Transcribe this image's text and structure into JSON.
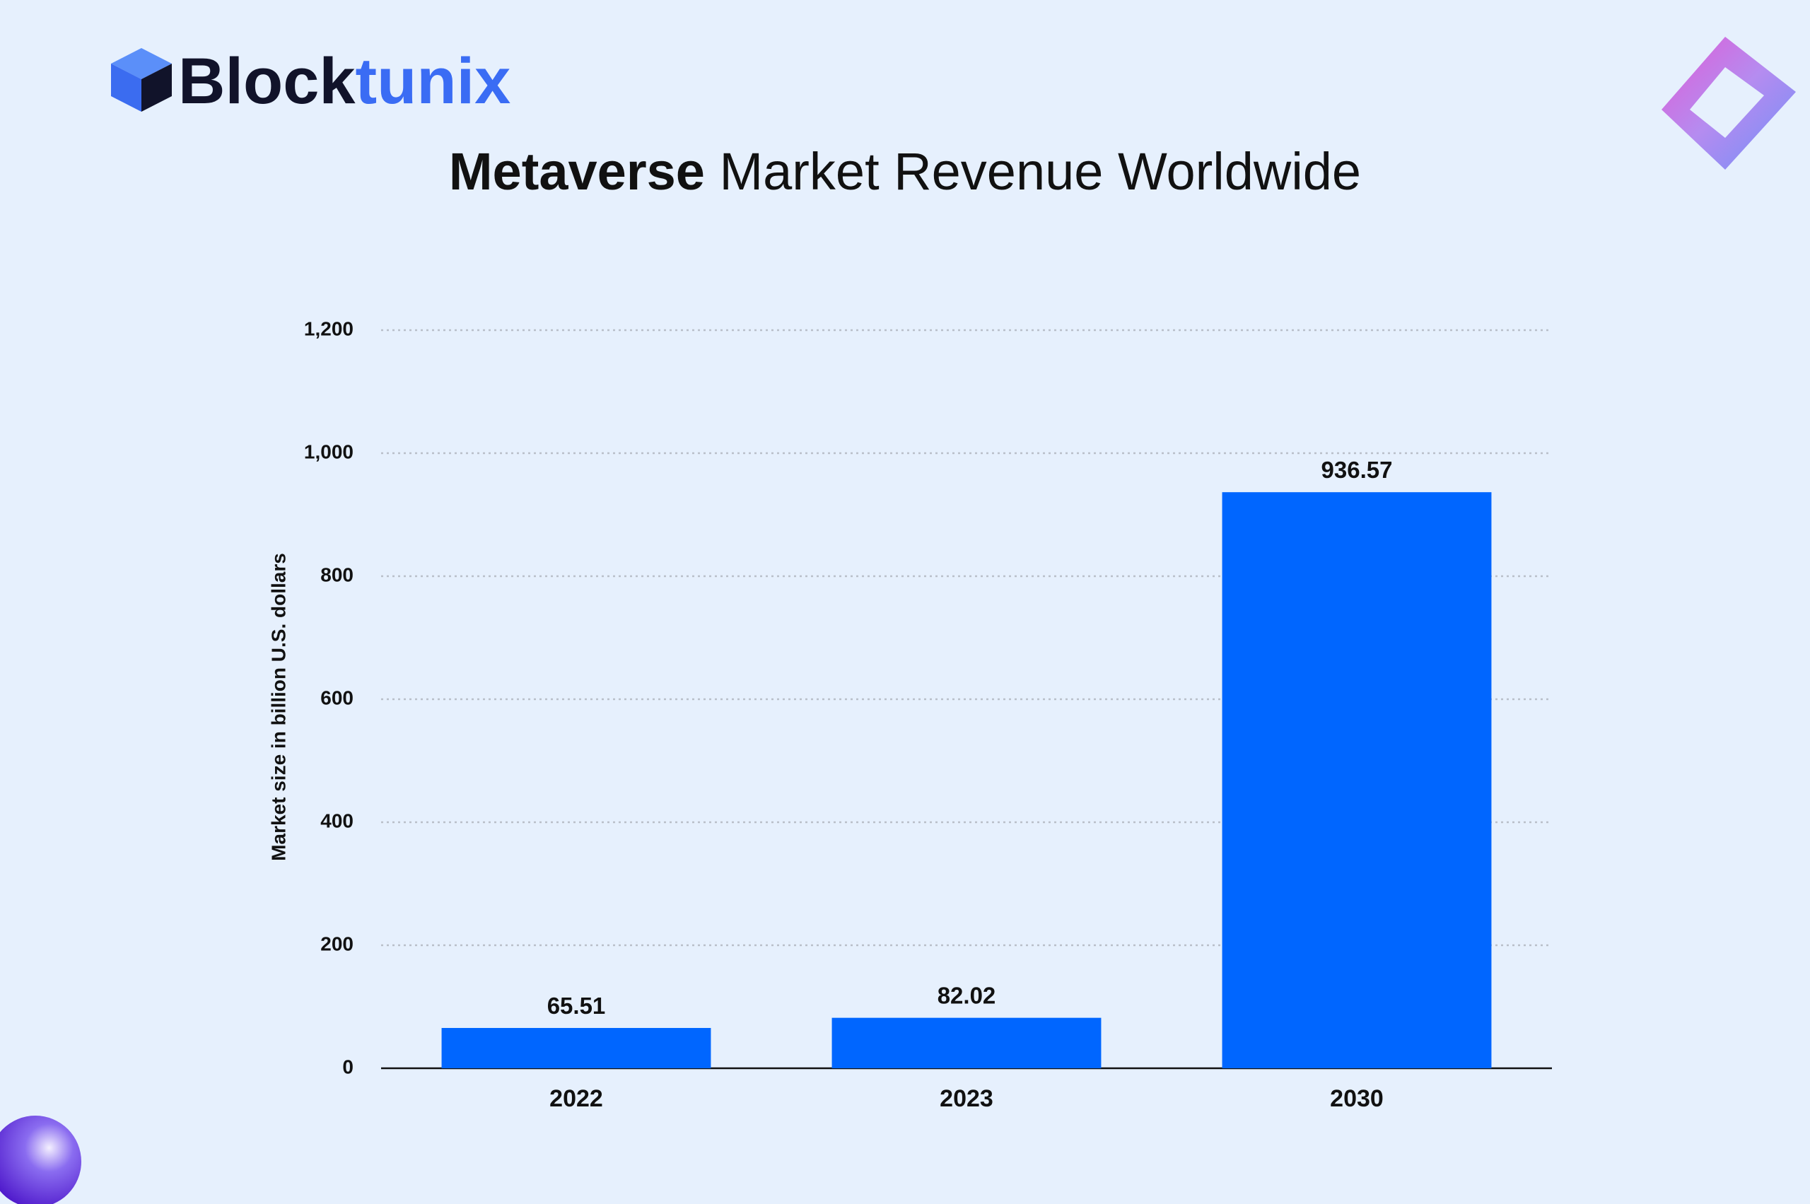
{
  "brand": {
    "part1": "Block",
    "part2": "tunix"
  },
  "chart_data": {
    "type": "bar",
    "title_bold": "Metaverse",
    "title_rest": "Market Revenue Worldwide",
    "y_label": "Market size in billion U.S. dollars",
    "categories": [
      "2022",
      "2023",
      "2030"
    ],
    "values": [
      65.51,
      82.02,
      936.57
    ],
    "color": "#0066ff",
    "ylim": [
      0,
      1200
    ],
    "yticks": [
      0,
      200,
      400,
      600,
      800,
      {
        "value": 1000,
        "label": "1,000"
      },
      {
        "value": 1200,
        "label": "1,200"
      }
    ],
    "grid": true
  }
}
